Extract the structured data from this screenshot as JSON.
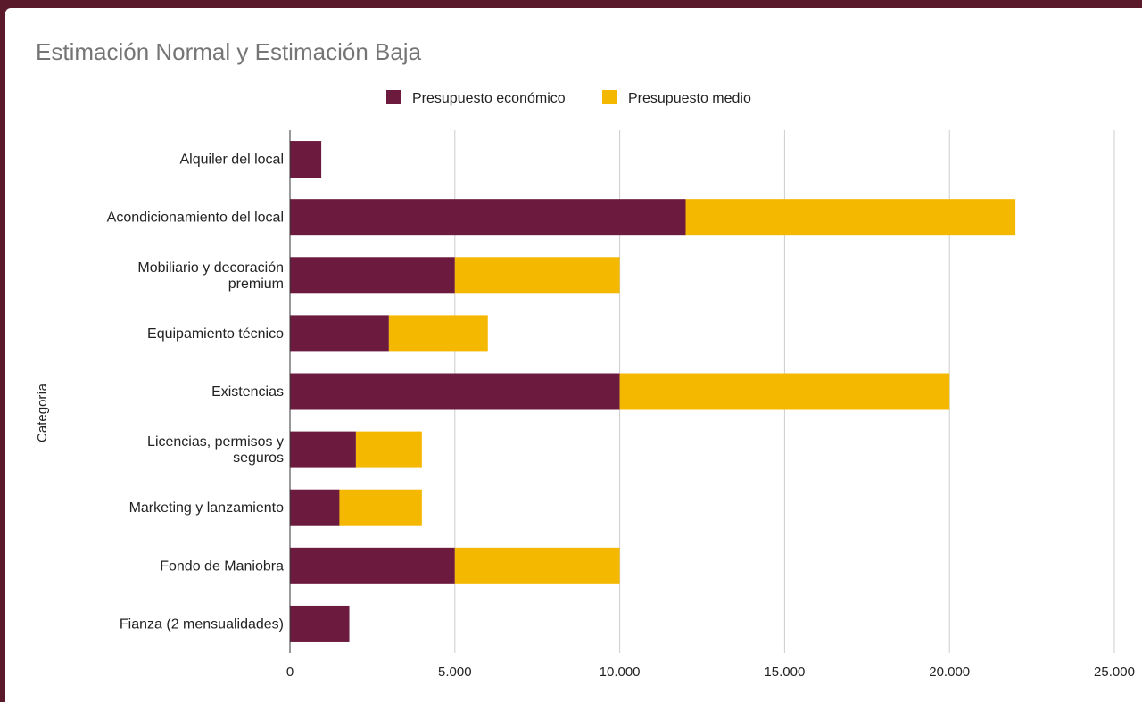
{
  "chart_data": {
    "type": "bar",
    "orientation": "horizontal",
    "stacked": true,
    "title": "Estimación Normal y Estimación Baja",
    "ylabel": "Categoría",
    "xlabel": "",
    "xlim": [
      0,
      25000
    ],
    "x_ticks": [
      "0",
      "5.000",
      "10.000",
      "15.000",
      "20.000",
      "25.000"
    ],
    "x_tick_values": [
      0,
      5000,
      10000,
      15000,
      20000,
      25000
    ],
    "grid": true,
    "legend_position": "top",
    "categories": [
      [
        "Alquiler del local"
      ],
      [
        "Acondicionamiento del local"
      ],
      [
        "Mobiliario y decoración",
        "premium"
      ],
      [
        "Equipamiento técnico"
      ],
      [
        "Existencias"
      ],
      [
        "Licencias, permisos y",
        "seguros"
      ],
      [
        "Marketing y lanzamiento"
      ],
      [
        "Fondo de Maniobra"
      ],
      [
        "Fianza (2 mensualidades)"
      ]
    ],
    "series": [
      {
        "name": "Presupuesto económico",
        "color": "#6d1a3f",
        "values": [
          950,
          12000,
          5000,
          3000,
          10000,
          2000,
          1500,
          5000,
          1800
        ]
      },
      {
        "name": "Presupuesto medio",
        "color": "#f5b800",
        "values": [
          0,
          10000,
          5000,
          3000,
          10000,
          2000,
          2500,
          5000,
          0
        ]
      }
    ]
  }
}
